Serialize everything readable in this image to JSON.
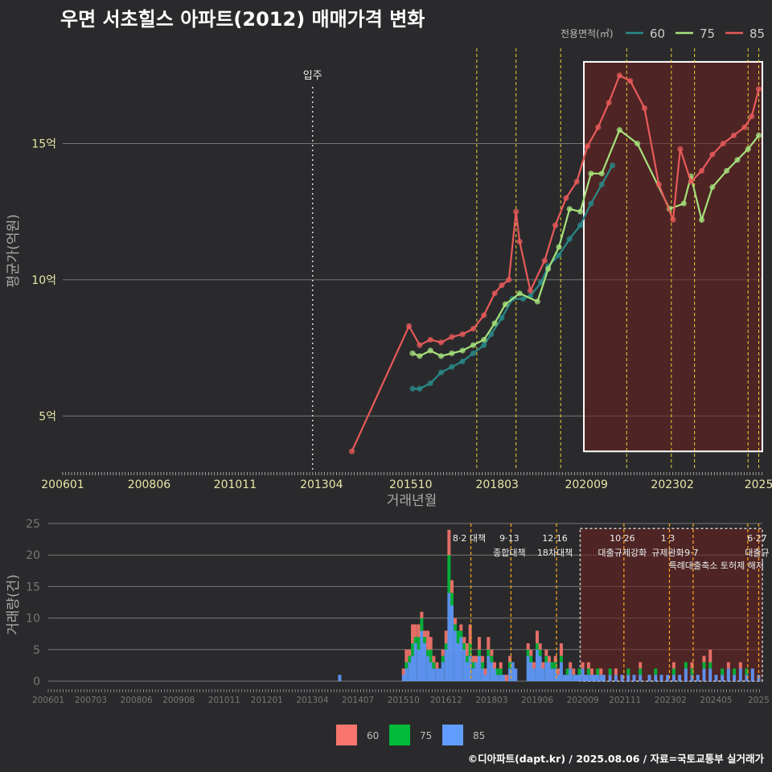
{
  "title": "우면 서초힐스 아파트(2012) 매매가격 변화",
  "footer": "©디아파트(dapt.kr) / 2025.08.06 / 자료=국토교통부 실거래가",
  "colors": {
    "s60": "#2a8a8a",
    "s75": "#a6e27c",
    "s85": "#e85a5a",
    "v60": "#f8766d",
    "v75": "#00ba38",
    "v85": "#619cff",
    "policy": "#e8d23a",
    "highlight": "#6b1f1f",
    "grid": "#777777"
  },
  "chart_data": [
    {
      "type": "line",
      "title": "우면 서초힐스 아파트(2012) 매매가격 변화",
      "xlabel": "거래년월",
      "ylabel": "평균가(억원)",
      "xlim": [
        2006.0,
        2025.6
      ],
      "ylim": [
        3.0,
        18.5
      ],
      "x_ticks": [
        {
          "label": "200601",
          "x": 2006.0
        },
        {
          "label": "200806",
          "x": 2008.42
        },
        {
          "label": "201011",
          "x": 2010.83
        },
        {
          "label": "201304",
          "x": 2013.25
        },
        {
          "label": "201510",
          "x": 2015.75
        },
        {
          "label": "201803",
          "x": 2018.17
        },
        {
          "label": "202009",
          "x": 2020.67
        },
        {
          "label": "202302",
          "x": 2023.08
        },
        {
          "label": "2025",
          "x": 2025.5
        }
      ],
      "y_ticks": [
        {
          "label": "5억",
          "y": 5
        },
        {
          "label": "10억",
          "y": 10
        },
        {
          "label": "15억",
          "y": 15
        }
      ],
      "legend": {
        "title": "전용면적(㎡)",
        "items": [
          "60",
          "75",
          "85"
        ],
        "position": "top-right"
      },
      "annotations": [
        {
          "text": "입주",
          "x": 2013.0
        }
      ],
      "policy_lines": [
        2017.6,
        2018.7,
        2019.95,
        2021.8,
        2023.05,
        2023.7,
        2025.2,
        2025.5
      ],
      "highlight_x": [
        2020.6,
        2025.6
      ],
      "highlight_y": [
        3.7,
        18.0
      ],
      "series": [
        {
          "name": "60",
          "x": [
            2015.8,
            2016.0,
            2016.3,
            2016.6,
            2016.9,
            2017.2,
            2017.5,
            2017.8,
            2018.0,
            2018.3,
            2018.6,
            2018.9,
            2019.1,
            2019.4,
            2019.6,
            2019.9,
            2020.2,
            2020.5,
            2020.8,
            2021.1,
            2021.4
          ],
          "y": [
            6.0,
            6.0,
            6.2,
            6.6,
            6.8,
            7.0,
            7.3,
            7.6,
            8.0,
            8.6,
            9.3,
            9.3,
            9.4,
            9.9,
            10.5,
            10.9,
            11.5,
            12.0,
            12.8,
            13.5,
            14.2
          ]
        },
        {
          "name": "75",
          "x": [
            2015.8,
            2016.0,
            2016.3,
            2016.6,
            2016.9,
            2017.2,
            2017.5,
            2017.8,
            2018.1,
            2018.4,
            2018.8,
            2019.3,
            2019.6,
            2019.9,
            2020.2,
            2020.5,
            2020.8,
            2021.1,
            2021.6,
            2022.1,
            2023.0,
            2023.4,
            2023.6,
            2023.9,
            2024.2,
            2024.6,
            2024.9,
            2025.2,
            2025.5
          ],
          "y": [
            7.3,
            7.2,
            7.4,
            7.2,
            7.3,
            7.4,
            7.6,
            7.8,
            8.4,
            9.1,
            9.5,
            9.2,
            10.4,
            11.2,
            12.6,
            12.5,
            13.9,
            13.9,
            15.5,
            15.0,
            12.6,
            12.8,
            13.8,
            12.2,
            13.4,
            14.0,
            14.4,
            14.8,
            15.3
          ]
        },
        {
          "name": "85",
          "x": [
            2014.1,
            2015.7,
            2016.0,
            2016.3,
            2016.6,
            2016.9,
            2017.2,
            2017.5,
            2017.8,
            2018.1,
            2018.3,
            2018.5,
            2018.7,
            2018.8,
            2019.1,
            2019.5,
            2019.8,
            2020.1,
            2020.4,
            2020.7,
            2021.0,
            2021.3,
            2021.6,
            2021.9,
            2022.3,
            2022.7,
            2023.1,
            2023.3,
            2023.6,
            2023.9,
            2024.2,
            2024.5,
            2024.8,
            2025.1,
            2025.3,
            2025.5
          ],
          "y": [
            3.7,
            8.3,
            7.6,
            7.8,
            7.7,
            7.9,
            8.0,
            8.2,
            8.7,
            9.5,
            9.8,
            10.0,
            12.5,
            11.4,
            9.6,
            10.7,
            12.0,
            13.0,
            13.6,
            14.9,
            15.6,
            16.5,
            17.5,
            17.3,
            16.3,
            13.5,
            12.2,
            14.8,
            13.6,
            14.0,
            14.6,
            15.0,
            15.3,
            15.6,
            16.0,
            17.0
          ]
        }
      ]
    },
    {
      "type": "bar",
      "stacked": true,
      "xlabel": "",
      "ylabel": "거래량(건)",
      "xlim": [
        2006.0,
        2025.6
      ],
      "ylim": [
        0,
        25
      ],
      "x_ticks": [
        {
          "label": "200601",
          "x": 2006.0
        },
        {
          "label": "200703",
          "x": 2007.17
        },
        {
          "label": "200806",
          "x": 2008.42
        },
        {
          "label": "200908",
          "x": 2009.58
        },
        {
          "label": "201011",
          "x": 2010.83
        },
        {
          "label": "201201",
          "x": 2012.0
        },
        {
          "label": "201304",
          "x": 2013.25
        },
        {
          "label": "201407",
          "x": 2014.5
        },
        {
          "label": "201510",
          "x": 2015.75
        },
        {
          "label": "201612",
          "x": 2016.92
        },
        {
          "label": "201803",
          "x": 2018.17
        },
        {
          "label": "201906",
          "x": 2019.42
        },
        {
          "label": "202009",
          "x": 2020.67
        },
        {
          "label": "202111",
          "x": 2021.83
        },
        {
          "label": "202302",
          "x": 2023.08
        },
        {
          "label": "202405",
          "x": 2024.33
        },
        {
          "label": "2025",
          "x": 2025.5
        }
      ],
      "y_ticks": [
        {
          "label": "0",
          "y": 0
        },
        {
          "label": "5",
          "y": 5
        },
        {
          "label": "10",
          "y": 10
        },
        {
          "label": "15",
          "y": 15
        },
        {
          "label": "20",
          "y": 20
        },
        {
          "label": "25",
          "y": 25
        }
      ],
      "legend": {
        "items": [
          "60",
          "75",
          "85"
        ],
        "position": "bottom"
      },
      "highlight_x": [
        2020.6,
        2025.6
      ],
      "policy_lines": [
        {
          "x": 2017.6,
          "label": "8·2 대책",
          "label2": ""
        },
        {
          "x": 2018.7,
          "label": "9·13",
          "label2": "종합대책"
        },
        {
          "x": 2019.95,
          "label": "12·16",
          "label2": "18차대책"
        },
        {
          "x": 2021.8,
          "label": "10·26",
          "label2": "대출규제강화"
        },
        {
          "x": 2023.05,
          "label": "1·3",
          "label2": "규제완화"
        },
        {
          "x": 2023.7,
          "label": "",
          "label2": "9·7"
        },
        {
          "x": 2025.2,
          "label": "",
          "label2": ""
        },
        {
          "x": 2025.5,
          "label": "6·27",
          "label2": "대출규"
        }
      ],
      "policy_note": "특례대출축소 토허제 해저",
      "x": [
        2014.0,
        2015.75,
        2015.83,
        2015.92,
        2016.0,
        2016.08,
        2016.17,
        2016.25,
        2016.33,
        2016.42,
        2016.5,
        2016.58,
        2016.67,
        2016.75,
        2016.83,
        2016.92,
        2017.0,
        2017.08,
        2017.17,
        2017.25,
        2017.33,
        2017.42,
        2017.5,
        2017.58,
        2017.67,
        2017.75,
        2017.83,
        2017.92,
        2018.0,
        2018.08,
        2018.17,
        2018.25,
        2018.33,
        2018.42,
        2018.5,
        2018.58,
        2018.67,
        2018.75,
        2018.83,
        2019.17,
        2019.25,
        2019.33,
        2019.42,
        2019.5,
        2019.58,
        2019.67,
        2019.75,
        2019.83,
        2019.92,
        2020.0,
        2020.08,
        2020.17,
        2020.25,
        2020.33,
        2020.42,
        2020.5,
        2020.58,
        2020.67,
        2020.75,
        2020.83,
        2020.92,
        2021.0,
        2021.08,
        2021.17,
        2021.25,
        2021.42,
        2021.58,
        2021.75,
        2021.92,
        2022.08,
        2022.25,
        2022.5,
        2022.67,
        2022.83,
        2023.0,
        2023.17,
        2023.33,
        2023.5,
        2023.67,
        2023.83,
        2024.0,
        2024.17,
        2024.33,
        2024.5,
        2024.67,
        2024.83,
        2025.0,
        2025.17,
        2025.33,
        2025.5
      ],
      "series": [
        {
          "name": "60",
          "values": [
            0,
            1,
            2,
            1,
            3,
            2,
            2,
            1,
            1,
            3,
            2,
            1,
            1,
            0,
            1,
            2,
            4,
            2,
            1,
            0,
            1,
            1,
            2,
            3,
            1,
            1,
            2,
            1,
            1,
            2,
            1,
            1,
            0,
            1,
            0,
            1,
            1,
            0,
            0,
            1,
            1,
            1,
            2,
            1,
            1,
            1,
            1,
            0,
            1,
            1,
            2,
            0,
            0,
            1,
            1,
            0,
            0,
            1,
            0,
            1,
            1,
            0,
            0,
            1,
            0,
            0,
            1,
            0,
            0,
            0,
            1,
            0,
            0,
            0,
            0,
            1,
            0,
            0,
            1,
            0,
            1,
            2,
            0,
            0,
            1,
            0,
            1,
            0,
            0,
            0
          ]
        },
        {
          "name": "75",
          "values": [
            0,
            0,
            1,
            1,
            2,
            1,
            2,
            2,
            1,
            1,
            2,
            1,
            0,
            0,
            1,
            1,
            6,
            2,
            1,
            2,
            1,
            1,
            1,
            2,
            1,
            0,
            1,
            1,
            0,
            1,
            1,
            0,
            1,
            1,
            0,
            0,
            1,
            0,
            0,
            1,
            1,
            0,
            1,
            1,
            0,
            1,
            0,
            1,
            1,
            0,
            1,
            0,
            1,
            0,
            0,
            0,
            1,
            0,
            0,
            1,
            0,
            0,
            1,
            0,
            0,
            1,
            0,
            0,
            1,
            0,
            1,
            0,
            1,
            0,
            0,
            1,
            0,
            1,
            1,
            0,
            1,
            1,
            0,
            1,
            0,
            1,
            0,
            1,
            0,
            0
          ]
        },
        {
          "name": "85",
          "values": [
            1,
            1,
            2,
            3,
            4,
            6,
            5,
            8,
            6,
            4,
            3,
            2,
            2,
            2,
            3,
            5,
            14,
            12,
            8,
            6,
            7,
            5,
            3,
            4,
            2,
            3,
            4,
            2,
            1,
            4,
            3,
            2,
            1,
            1,
            1,
            0,
            2,
            3,
            2,
            4,
            3,
            2,
            5,
            4,
            2,
            3,
            3,
            2,
            2,
            1,
            3,
            1,
            1,
            2,
            1,
            1,
            1,
            2,
            1,
            1,
            1,
            1,
            1,
            1,
            1,
            1,
            1,
            1,
            1,
            1,
            1,
            1,
            1,
            1,
            1,
            1,
            1,
            2,
            1,
            1,
            2,
            2,
            1,
            1,
            2,
            1,
            2,
            1,
            2,
            1
          ]
        }
      ]
    }
  ]
}
